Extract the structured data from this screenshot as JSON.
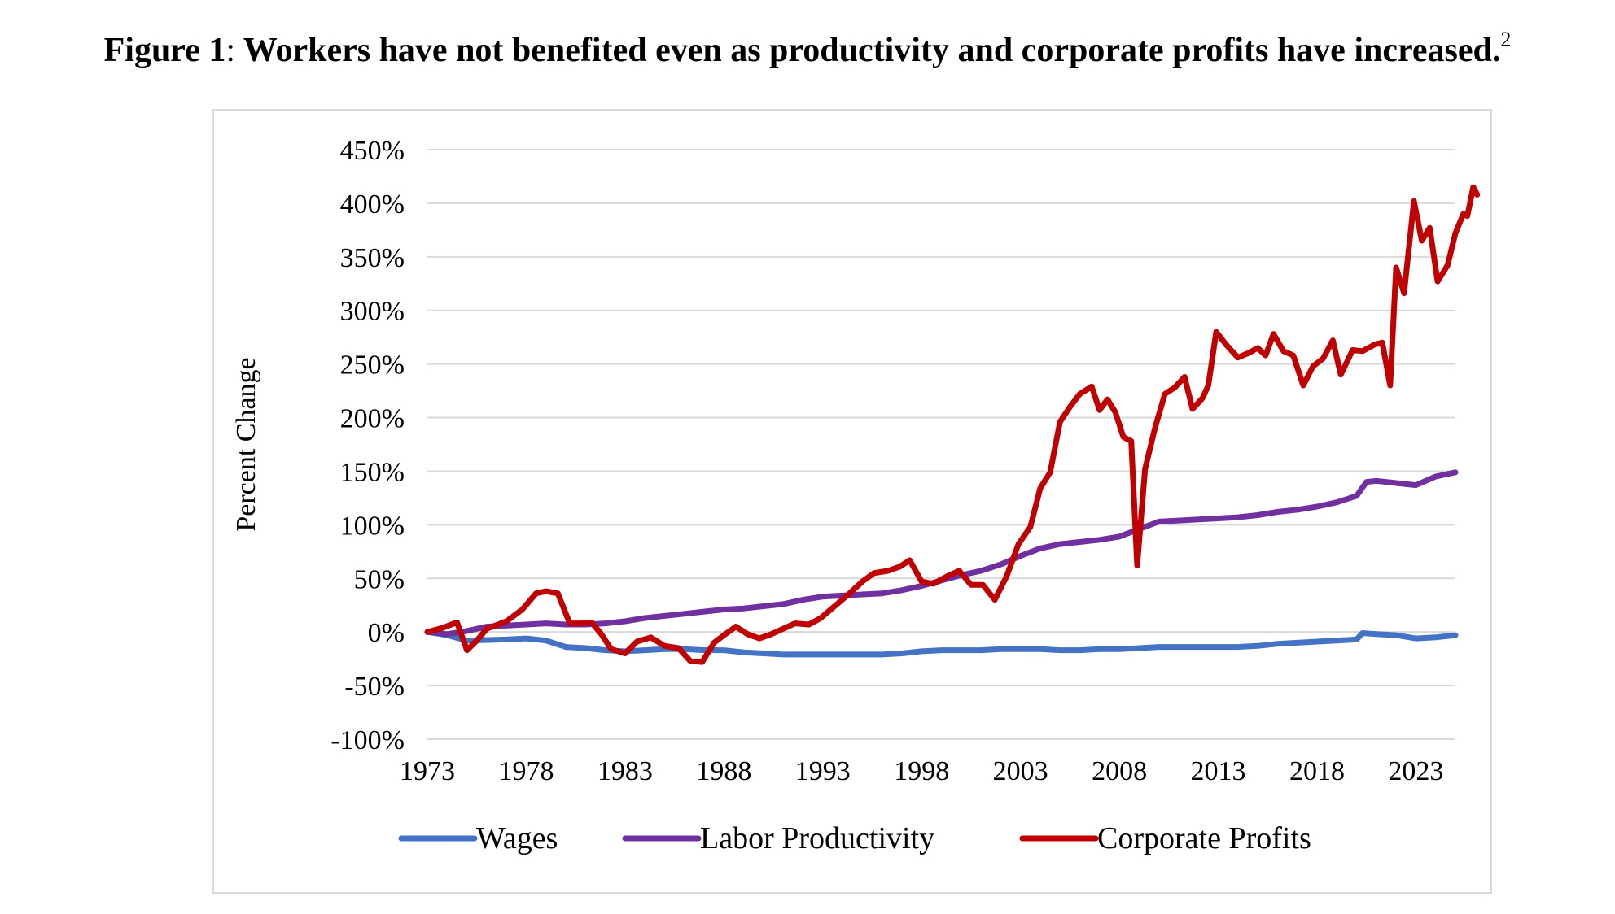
{
  "figure": {
    "number": "Figure 1",
    "separator": ":",
    "title": "Workers have not benefited even as productivity and corporate profits have increased.",
    "footnote": "2"
  },
  "chart_data": {
    "type": "line",
    "ylabel": "Percent Change",
    "xlabel": "",
    "xlim": [
      1973,
      2025
    ],
    "ylim": [
      -100,
      450
    ],
    "x_ticks": [
      "1973",
      "1978",
      "1983",
      "1988",
      "1993",
      "1998",
      "2003",
      "2008",
      "2013",
      "2018",
      "2023"
    ],
    "y_ticks": [
      "450%",
      "400%",
      "350%",
      "300%",
      "250%",
      "200%",
      "150%",
      "100%",
      "50%",
      "0%",
      "-50%",
      "-100%"
    ],
    "grid": "horizontal",
    "legend": "bottom",
    "series": [
      {
        "name": "Wages",
        "color": "#4472c4",
        "points": [
          [
            1973,
            0
          ],
          [
            1974,
            -3
          ],
          [
            1975,
            -8
          ],
          [
            1977,
            -7
          ],
          [
            1978,
            -6
          ],
          [
            1979,
            -8
          ],
          [
            1980,
            -14
          ],
          [
            1981,
            -15
          ],
          [
            1982,
            -17
          ],
          [
            1983,
            -18
          ],
          [
            1984,
            -17
          ],
          [
            1985,
            -16
          ],
          [
            1986,
            -16
          ],
          [
            1987,
            -17
          ],
          [
            1988,
            -17
          ],
          [
            1989,
            -19
          ],
          [
            1990,
            -20
          ],
          [
            1991,
            -21
          ],
          [
            1992,
            -21
          ],
          [
            1993,
            -21
          ],
          [
            1994,
            -21
          ],
          [
            1995,
            -21
          ],
          [
            1996,
            -21
          ],
          [
            1997,
            -20
          ],
          [
            1998,
            -18
          ],
          [
            1999,
            -17
          ],
          [
            2000,
            -17
          ],
          [
            2001,
            -17
          ],
          [
            2002,
            -16
          ],
          [
            2003,
            -16
          ],
          [
            2004,
            -16
          ],
          [
            2005,
            -17
          ],
          [
            2006,
            -17
          ],
          [
            2007,
            -16
          ],
          [
            2008,
            -16
          ],
          [
            2009,
            -15
          ],
          [
            2010,
            -14
          ],
          [
            2011,
            -14
          ],
          [
            2012,
            -14
          ],
          [
            2013,
            -14
          ],
          [
            2014,
            -14
          ],
          [
            2015,
            -13
          ],
          [
            2016,
            -11
          ],
          [
            2017,
            -10
          ],
          [
            2018,
            -9
          ],
          [
            2019,
            -8
          ],
          [
            2020,
            -7
          ],
          [
            2020.3,
            -1
          ],
          [
            2021,
            -2
          ],
          [
            2022,
            -3
          ],
          [
            2023,
            -6
          ],
          [
            2024,
            -5
          ],
          [
            2025,
            -3
          ]
        ]
      },
      {
        "name": "Labor Productivity",
        "color": "#7030a0",
        "points": [
          [
            1973,
            0
          ],
          [
            1974,
            -2
          ],
          [
            1975,
            1
          ],
          [
            1976,
            5
          ],
          [
            1977,
            6
          ],
          [
            1978,
            7
          ],
          [
            1979,
            8
          ],
          [
            1980,
            7
          ],
          [
            1981,
            7
          ],
          [
            1982,
            8
          ],
          [
            1983,
            10
          ],
          [
            1984,
            13
          ],
          [
            1985,
            15
          ],
          [
            1986,
            17
          ],
          [
            1987,
            19
          ],
          [
            1988,
            21
          ],
          [
            1989,
            22
          ],
          [
            1990,
            24
          ],
          [
            1991,
            26
          ],
          [
            1992,
            30
          ],
          [
            1993,
            33
          ],
          [
            1994,
            34
          ],
          [
            1995,
            35
          ],
          [
            1996,
            36
          ],
          [
            1997,
            39
          ],
          [
            1998,
            43
          ],
          [
            1999,
            48
          ],
          [
            2000,
            53
          ],
          [
            2001,
            57
          ],
          [
            2002,
            63
          ],
          [
            2003,
            71
          ],
          [
            2004,
            78
          ],
          [
            2005,
            82
          ],
          [
            2006,
            84
          ],
          [
            2007,
            86
          ],
          [
            2008,
            89
          ],
          [
            2009,
            96
          ],
          [
            2010,
            103
          ],
          [
            2011,
            104
          ],
          [
            2012,
            105
          ],
          [
            2013,
            106
          ],
          [
            2014,
            107
          ],
          [
            2015,
            109
          ],
          [
            2016,
            112
          ],
          [
            2017,
            114
          ],
          [
            2018,
            117
          ],
          [
            2019,
            121
          ],
          [
            2020,
            127
          ],
          [
            2020.5,
            140
          ],
          [
            2021,
            141
          ],
          [
            2022,
            139
          ],
          [
            2023,
            137
          ],
          [
            2024,
            145
          ],
          [
            2025,
            149
          ]
        ]
      },
      {
        "name": "Corporate Profits",
        "color": "#c00000",
        "points": [
          [
            1973,
            0
          ],
          [
            1973.8,
            4
          ],
          [
            1974.5,
            9
          ],
          [
            1975,
            -17
          ],
          [
            1975.5,
            -8
          ],
          [
            1976,
            3
          ],
          [
            1977,
            10
          ],
          [
            1977.8,
            21
          ],
          [
            1978.5,
            36
          ],
          [
            1979,
            38
          ],
          [
            1979.6,
            36
          ],
          [
            1980.2,
            8
          ],
          [
            1980.8,
            8
          ],
          [
            1981.3,
            9
          ],
          [
            1981.8,
            -2
          ],
          [
            1982.3,
            -16
          ],
          [
            1983,
            -20
          ],
          [
            1983.6,
            -9
          ],
          [
            1984.3,
            -5
          ],
          [
            1985,
            -13
          ],
          [
            1985.7,
            -15
          ],
          [
            1986.3,
            -27
          ],
          [
            1986.9,
            -28
          ],
          [
            1987.5,
            -10
          ],
          [
            1988,
            -3
          ],
          [
            1988.6,
            5
          ],
          [
            1989.2,
            -2
          ],
          [
            1989.8,
            -6
          ],
          [
            1990.4,
            -2
          ],
          [
            1991,
            3
          ],
          [
            1991.6,
            8
          ],
          [
            1992.3,
            7
          ],
          [
            1992.9,
            13
          ],
          [
            1993.6,
            24
          ],
          [
            1994.3,
            35
          ],
          [
            1995,
            47
          ],
          [
            1995.6,
            55
          ],
          [
            1996.3,
            57
          ],
          [
            1996.9,
            61
          ],
          [
            1997.4,
            67
          ],
          [
            1998,
            47
          ],
          [
            1998.6,
            45
          ],
          [
            1999.3,
            52
          ],
          [
            1999.9,
            57
          ],
          [
            2000.5,
            44
          ],
          [
            2001.1,
            44
          ],
          [
            2001.7,
            30
          ],
          [
            2002.3,
            52
          ],
          [
            2002.9,
            82
          ],
          [
            2003.5,
            98
          ],
          [
            2004,
            134
          ],
          [
            2004.5,
            149
          ],
          [
            2005,
            196
          ],
          [
            2005.5,
            210
          ],
          [
            2006,
            222
          ],
          [
            2006.6,
            229
          ],
          [
            2007,
            207
          ],
          [
            2007.4,
            217
          ],
          [
            2007.8,
            205
          ],
          [
            2008.2,
            182
          ],
          [
            2008.6,
            178
          ],
          [
            2008.9,
            62
          ],
          [
            2009.3,
            152
          ],
          [
            2009.8,
            190
          ],
          [
            2010.3,
            222
          ],
          [
            2010.8,
            228
          ],
          [
            2011.3,
            238
          ],
          [
            2011.7,
            208
          ],
          [
            2012.2,
            218
          ],
          [
            2012.5,
            230
          ],
          [
            2012.9,
            280
          ],
          [
            2013.4,
            268
          ],
          [
            2014,
            256
          ],
          [
            2014.5,
            260
          ],
          [
            2015,
            265
          ],
          [
            2015.4,
            258
          ],
          [
            2015.8,
            278
          ],
          [
            2016.3,
            262
          ],
          [
            2016.8,
            258
          ],
          [
            2017.3,
            230
          ],
          [
            2017.8,
            248
          ],
          [
            2018.3,
            255
          ],
          [
            2018.8,
            272
          ],
          [
            2019.2,
            240
          ],
          [
            2019.8,
            263
          ],
          [
            2020.3,
            262
          ],
          [
            2020.9,
            268
          ],
          [
            2021.3,
            270
          ],
          [
            2021.7,
            230
          ],
          [
            2022,
            340
          ],
          [
            2022.4,
            316
          ],
          [
            2022.9,
            402
          ],
          [
            2023.3,
            365
          ],
          [
            2023.7,
            377
          ],
          [
            2024.1,
            327
          ],
          [
            2024.6,
            342
          ],
          [
            2025,
            372
          ],
          [
            2025.4,
            390
          ],
          [
            2025.6,
            388
          ],
          [
            2025.9,
            415
          ],
          [
            2026.1,
            408
          ]
        ]
      }
    ]
  }
}
